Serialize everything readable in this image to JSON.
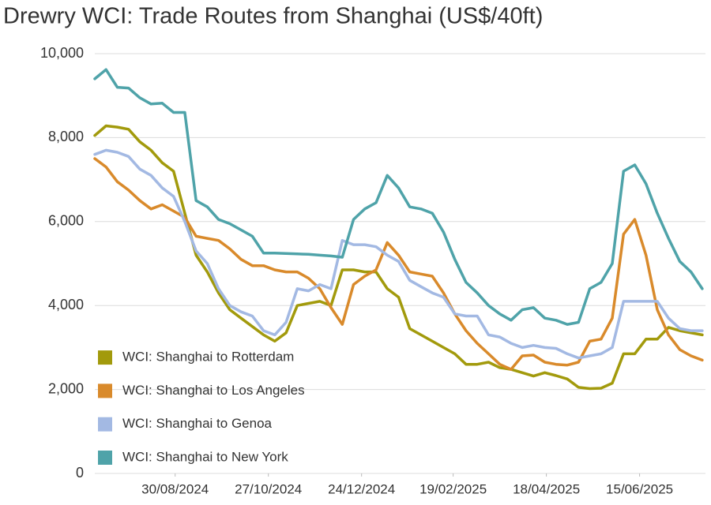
{
  "chart_data": {
    "type": "line",
    "title": "Drewry WCI: Trade Routes from Shanghai (US$/40ft)",
    "x": [
      "11/07/2024",
      "18/07/2024",
      "25/07/2024",
      "01/08/2024",
      "08/08/2024",
      "15/08/2024",
      "22/08/2024",
      "29/08/2024",
      "05/09/2024",
      "12/09/2024",
      "19/09/2024",
      "26/09/2024",
      "03/10/2024",
      "10/10/2024",
      "17/10/2024",
      "24/10/2024",
      "31/10/2024",
      "07/11/2024",
      "14/11/2024",
      "21/11/2024",
      "28/11/2024",
      "05/12/2024",
      "12/12/2024",
      "19/12/2024",
      "26/12/2024",
      "02/01/2025",
      "09/01/2025",
      "16/01/2025",
      "23/01/2025",
      "30/01/2025",
      "06/02/2025",
      "13/02/2025",
      "20/02/2025",
      "27/02/2025",
      "06/03/2025",
      "13/03/2025",
      "20/03/2025",
      "27/03/2025",
      "03/04/2025",
      "10/04/2025",
      "17/04/2025",
      "24/04/2025",
      "01/05/2025",
      "08/05/2025",
      "15/05/2025",
      "22/05/2025",
      "29/05/2025",
      "05/06/2025",
      "12/06/2025",
      "19/06/2025",
      "26/06/2025",
      "03/07/2025",
      "10/07/2025",
      "17/07/2025",
      "24/07/2025"
    ],
    "series": [
      {
        "name": "WCI: Shanghai to Rotterdam",
        "color": "#a29a0c",
        "values": [
          8050,
          8280,
          8250,
          8200,
          7900,
          7700,
          7400,
          7200,
          6200,
          5200,
          4800,
          4300,
          3900,
          3700,
          3500,
          3300,
          3150,
          3350,
          4000,
          4050,
          4100,
          4000,
          4850,
          4850,
          4800,
          4800,
          4400,
          4200,
          3450,
          3300,
          3150,
          3000,
          2850,
          2600,
          2600,
          2650,
          2520,
          2480,
          2400,
          2320,
          2400,
          2330,
          2250,
          2050,
          2020,
          2030,
          2150,
          2850,
          2850,
          3200,
          3200,
          3480,
          3400,
          3350,
          3300
        ]
      },
      {
        "name": "WCI: Shanghai to Los Angeles",
        "color": "#d98a2b",
        "values": [
          7500,
          7300,
          6950,
          6750,
          6500,
          6300,
          6400,
          6250,
          6100,
          5650,
          5600,
          5550,
          5350,
          5100,
          4950,
          4950,
          4850,
          4800,
          4800,
          4650,
          4400,
          3950,
          3550,
          4500,
          4700,
          4850,
          5500,
          5200,
          4800,
          4750,
          4700,
          4300,
          3800,
          3400,
          3100,
          2850,
          2600,
          2480,
          2800,
          2820,
          2650,
          2600,
          2580,
          2650,
          3150,
          3200,
          3700,
          5700,
          6050,
          5200,
          3900,
          3300,
          2950,
          2800,
          2700
        ]
      },
      {
        "name": "WCI: Shanghai to Genoa",
        "color": "#a3b9e3",
        "values": [
          7600,
          7700,
          7650,
          7550,
          7250,
          7100,
          6800,
          6600,
          6000,
          5300,
          5000,
          4400,
          4000,
          3850,
          3750,
          3400,
          3300,
          3600,
          4400,
          4350,
          4500,
          4400,
          5550,
          5450,
          5450,
          5400,
          5200,
          5050,
          4600,
          4450,
          4300,
          4200,
          3800,
          3750,
          3750,
          3300,
          3250,
          3100,
          3000,
          3050,
          3000,
          2980,
          2850,
          2750,
          2800,
          2850,
          3000,
          4100,
          4100,
          4100,
          4100,
          3700,
          3450,
          3400,
          3400
        ]
      },
      {
        "name": "WCI: Shanghai to New York",
        "color": "#4fa3a9",
        "values": [
          9400,
          9620,
          9200,
          9180,
          8950,
          8800,
          8820,
          8600,
          8600,
          6500,
          6350,
          6050,
          5950,
          5800,
          5650,
          5250,
          5250,
          5240,
          5230,
          5220,
          5200,
          5180,
          5150,
          6050,
          6300,
          6450,
          7100,
          6800,
          6350,
          6300,
          6200,
          5750,
          5100,
          4550,
          4300,
          4000,
          3800,
          3650,
          3900,
          3950,
          3700,
          3650,
          3550,
          3600,
          4400,
          4550,
          5000,
          7200,
          7350,
          6900,
          6200,
          5600,
          5050,
          4800,
          4400
        ]
      }
    ],
    "xlim": [
      "11/07/2024",
      "26/07/2025"
    ],
    "xticks": [
      "30/08/2024",
      "27/10/2024",
      "24/12/2024",
      "19/02/2025",
      "18/04/2025",
      "15/06/2025"
    ],
    "ylim": [
      0,
      10000
    ],
    "yticks": [
      0,
      {
        "value": 2000,
        "label": "2,000"
      },
      {
        "value": 4000,
        "label": "4,000"
      },
      {
        "value": 6000,
        "label": "6,000"
      },
      {
        "value": 8000,
        "label": "8,000"
      },
      {
        "value": 10000,
        "label": "10,000"
      }
    ],
    "grid": true,
    "legend": "lower left"
  }
}
